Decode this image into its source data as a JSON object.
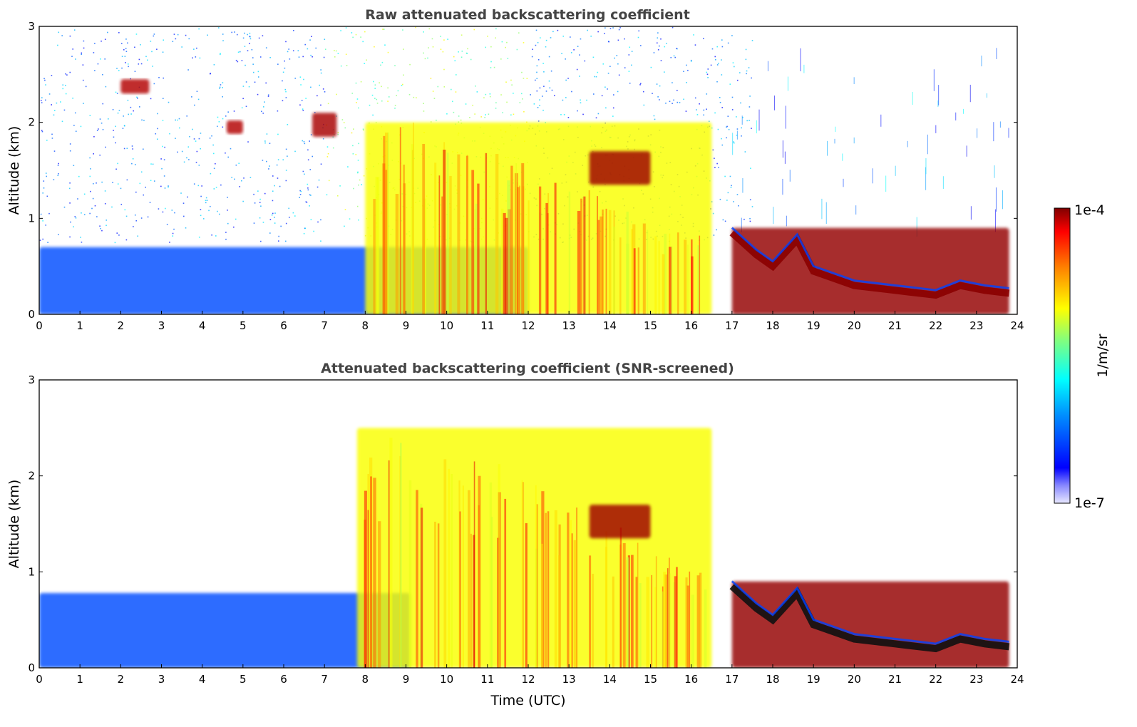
{
  "chart_data": [
    {
      "type": "heatmap",
      "title": "Raw attenuated backscattering coefficient",
      "xlabel": "",
      "ylabel": "Altitude (km)",
      "xlim": [
        0,
        24
      ],
      "ylim": [
        0,
        3
      ],
      "x_ticks": [
        "0",
        "1",
        "2",
        "3",
        "4",
        "5",
        "6",
        "7",
        "8",
        "9",
        "10",
        "11",
        "12",
        "13",
        "14",
        "15",
        "16",
        "17",
        "18",
        "19",
        "20",
        "21",
        "22",
        "23",
        "24"
      ],
      "y_ticks": [
        "0",
        "1",
        "2",
        "3"
      ],
      "features": [
        {
          "label": "boundary layer aerosol",
          "x": [
            0,
            12
          ],
          "y": [
            0,
            0.7
          ],
          "level": 0.2
        },
        {
          "label": "aerosol / fog plume",
          "x": [
            8,
            16.5
          ],
          "y": [
            0,
            2.0
          ],
          "level": 0.62
        },
        {
          "label": "elevated cloud",
          "x": [
            13.5,
            15
          ],
          "y": [
            1.35,
            1.7
          ],
          "level": 0.97
        },
        {
          "label": "stratus cloud layer",
          "x": [
            17,
            23.8
          ],
          "y": [
            0,
            0.9
          ],
          "level": 0.98
        },
        {
          "label": "high cloud patch",
          "x": [
            2.0,
            2.7
          ],
          "y": [
            2.3,
            2.45
          ],
          "level": 0.95
        },
        {
          "label": "high cloud patch",
          "x": [
            4.6,
            5.0
          ],
          "y": [
            1.88,
            2.02
          ],
          "level": 0.95
        },
        {
          "label": "high cloud patch",
          "x": [
            6.7,
            7.3
          ],
          "y": [
            1.85,
            2.1
          ],
          "level": 0.96
        }
      ]
    },
    {
      "type": "heatmap",
      "title": "Attenuated backscattering coefficient (SNR-screened)",
      "xlabel": "Time (UTC)",
      "ylabel": "Altitude (km)",
      "xlim": [
        0,
        24
      ],
      "ylim": [
        0,
        3
      ],
      "x_ticks": [
        "0",
        "1",
        "2",
        "3",
        "4",
        "5",
        "6",
        "7",
        "8",
        "9",
        "10",
        "11",
        "12",
        "13",
        "14",
        "15",
        "16",
        "17",
        "18",
        "19",
        "20",
        "21",
        "22",
        "23",
        "24"
      ],
      "y_ticks": [
        "0",
        "1",
        "2",
        "3"
      ],
      "features": [
        {
          "label": "boundary layer aerosol",
          "x": [
            0,
            9.1
          ],
          "y": [
            0,
            0.78
          ],
          "level": 0.2
        },
        {
          "label": "aerosol / fog plume",
          "x": [
            7.8,
            16.5
          ],
          "y": [
            0,
            2.5
          ],
          "level": 0.62
        },
        {
          "label": "elevated cloud",
          "x": [
            13.5,
            15
          ],
          "y": [
            1.35,
            1.7
          ],
          "level": 0.97
        },
        {
          "label": "stratus cloud layer",
          "x": [
            17,
            23.8
          ],
          "y": [
            0,
            0.9
          ],
          "level": 0.98
        }
      ]
    }
  ],
  "colorbar": {
    "label": "1/m/sr",
    "max_label": "1e-4",
    "min_label": "1e-7",
    "colormap": [
      "#ffffff",
      "#0000ff",
      "#00ffff",
      "#ffff00",
      "#ff0000",
      "#800000"
    ]
  }
}
